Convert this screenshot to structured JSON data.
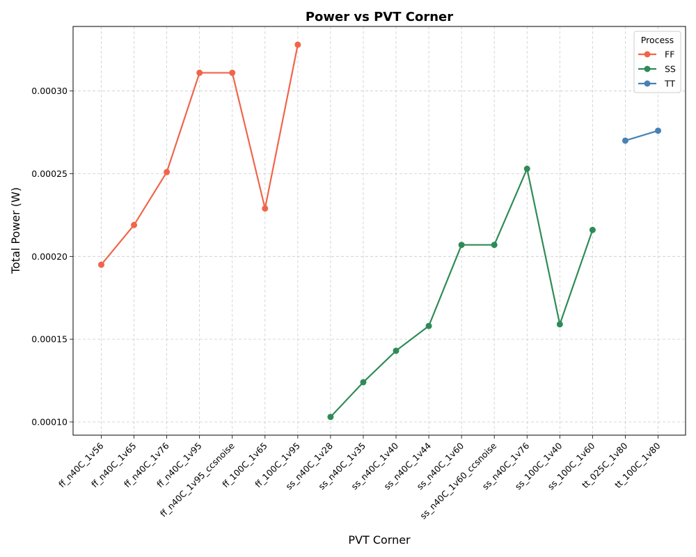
{
  "chart_data": {
    "type": "line",
    "title": "Power vs PVT Corner",
    "xlabel": "PVT Corner",
    "ylabel": "Total Power (W)",
    "categories": [
      "ff_n40C_1v56",
      "ff_n40C_1v65",
      "ff_n40C_1v76",
      "ff_n40C_1v95",
      "ff_n40C_1v95_ccsnoise",
      "ff_100C_1v65",
      "ff_100C_1v95",
      "ss_n40C_1v28",
      "ss_n40C_1v35",
      "ss_n40C_1v40",
      "ss_n40C_1v44",
      "ss_n40C_1v60",
      "ss_n40C_1v60_ccsnoise",
      "ss_n40C_1v76",
      "ss_100C_1v40",
      "ss_100C_1v60",
      "tt_025C_1v80",
      "tt_100C_1v80"
    ],
    "ylim": [
      9.2e-05,
      0.000339
    ],
    "yticks": [
      0.0001,
      0.00015,
      0.0002,
      0.00025,
      0.0003
    ],
    "ytick_labels": [
      "0.00010",
      "0.00015",
      "0.00020",
      "0.00025",
      "0.00030"
    ],
    "grid": true,
    "legend_title": "Process",
    "legend_position": "top-right",
    "series": [
      {
        "name": "FF",
        "color": "#f0654a",
        "x": [
          "ff_n40C_1v56",
          "ff_n40C_1v65",
          "ff_n40C_1v76",
          "ff_n40C_1v95",
          "ff_n40C_1v95_ccsnoise",
          "ff_100C_1v65",
          "ff_100C_1v95"
        ],
        "values": [
          0.000195,
          0.000219,
          0.000251,
          0.000311,
          0.000311,
          0.000229,
          0.000328
        ]
      },
      {
        "name": "SS",
        "color": "#2e8b57",
        "x": [
          "ss_n40C_1v28",
          "ss_n40C_1v35",
          "ss_n40C_1v40",
          "ss_n40C_1v44",
          "ss_n40C_1v60",
          "ss_n40C_1v60_ccsnoise",
          "ss_n40C_1v76",
          "ss_100C_1v40",
          "ss_100C_1v60"
        ],
        "values": [
          0.000103,
          0.000124,
          0.000143,
          0.000158,
          0.000207,
          0.000207,
          0.000253,
          0.000159,
          0.000216
        ]
      },
      {
        "name": "TT",
        "color": "#4682b4",
        "x": [
          "tt_025C_1v80",
          "tt_100C_1v80"
        ],
        "values": [
          0.00027,
          0.000276
        ]
      }
    ]
  }
}
